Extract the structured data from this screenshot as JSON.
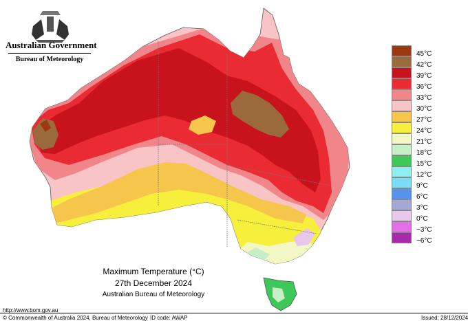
{
  "header": {
    "government": "Australian Government",
    "bureau": "Bureau of Meteorology"
  },
  "legend": [
    {
      "label": "45°C",
      "color": "#9b3a12"
    },
    {
      "label": "42°C",
      "color": "#9a6a3c"
    },
    {
      "label": "39°C",
      "color": "#c8121c"
    },
    {
      "label": "36°C",
      "color": "#ea2b33"
    },
    {
      "label": "33°C",
      "color": "#f0858a"
    },
    {
      "label": "30°C",
      "color": "#f8c4c6"
    },
    {
      "label": "27°C",
      "color": "#f6c54c"
    },
    {
      "label": "24°C",
      "color": "#f6ef3c"
    },
    {
      "label": "21°C",
      "color": "#f3f7c6"
    },
    {
      "label": "18°C",
      "color": "#c6efc5"
    },
    {
      "label": "15°C",
      "color": "#3ec85a"
    },
    {
      "label": "12°C",
      "color": "#8defef"
    },
    {
      "label": "9°C",
      "color": "#79ddf7"
    },
    {
      "label": "6°C",
      "color": "#5593ee"
    },
    {
      "label": "3°C",
      "color": "#a3a8d6"
    },
    {
      "label": "0°C",
      "color": "#e8c7ea"
    },
    {
      "label": "−3°C",
      "color": "#e26fe8"
    },
    {
      "label": "−6°C",
      "color": "#a92aa9"
    }
  ],
  "caption": {
    "title": "Maximum Temperature (°C)",
    "date": "27th December 2024",
    "source": "Australian Bureau of Meteorology"
  },
  "footer": {
    "url": "http://www.bom.gov.au",
    "copyright": "© Commonwealth of Australia 2024, Bureau of Meteorology",
    "id_code": "ID code: AWAP",
    "issued": "Issued: 28/12/2024"
  }
}
